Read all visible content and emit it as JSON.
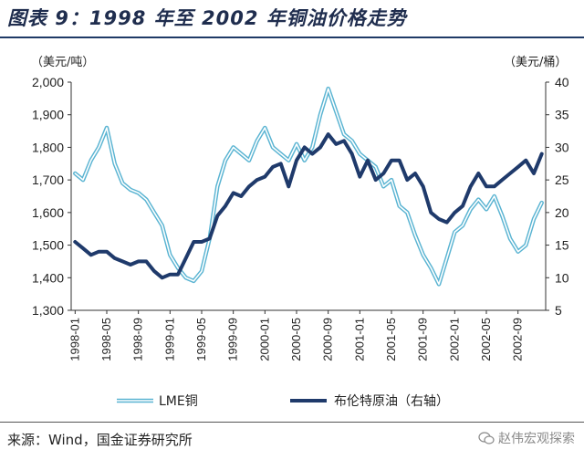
{
  "title": "图表 9：1998 年至 2002 年铜油价格走势",
  "source": "来源：Wind，国金证券研究所",
  "watermark": "赵伟宏观探索",
  "chart_data": {
    "type": "line",
    "title": "1998 年至 2002 年铜油价格走势",
    "y_left": {
      "unit_label": "（美元/吨）",
      "range": [
        1300,
        2000
      ],
      "ticks": [
        "1,300",
        "1,400",
        "1,500",
        "1,600",
        "1,700",
        "1,800",
        "1,900",
        "2,000"
      ]
    },
    "y_right": {
      "unit_label": "（美元/桶）",
      "range": [
        5,
        40
      ],
      "ticks": [
        "5",
        "10",
        "15",
        "20",
        "25",
        "30",
        "35",
        "40"
      ]
    },
    "x_ticks": [
      "1998-01",
      "1998-05",
      "1998-09",
      "1999-01",
      "1999-05",
      "1999-09",
      "2000-01",
      "2000-05",
      "2000-09",
      "2001-01",
      "2001-05",
      "2001-09",
      "2002-01",
      "2002-05",
      "2002-09"
    ],
    "x": [
      "1998-01",
      "1998-02",
      "1998-03",
      "1998-04",
      "1998-05",
      "1998-06",
      "1998-07",
      "1998-08",
      "1998-09",
      "1998-10",
      "1998-11",
      "1998-12",
      "1999-01",
      "1999-02",
      "1999-03",
      "1999-04",
      "1999-05",
      "1999-06",
      "1999-07",
      "1999-08",
      "1999-09",
      "1999-10",
      "1999-11",
      "1999-12",
      "2000-01",
      "2000-02",
      "2000-03",
      "2000-04",
      "2000-05",
      "2000-06",
      "2000-07",
      "2000-08",
      "2000-09",
      "2000-10",
      "2000-11",
      "2000-12",
      "2001-01",
      "2001-02",
      "2001-03",
      "2001-04",
      "2001-05",
      "2001-06",
      "2001-07",
      "2001-08",
      "2001-09",
      "2001-10",
      "2001-11",
      "2001-12",
      "2002-01",
      "2002-02",
      "2002-03",
      "2002-04",
      "2002-05",
      "2002-06",
      "2002-07",
      "2002-08",
      "2002-09",
      "2002-10",
      "2002-11",
      "2002-12"
    ],
    "grid": false,
    "legend_position": "bottom",
    "series": [
      {
        "name": "LME铜",
        "axis": "left",
        "color": "#5ab4d2",
        "style": "double",
        "values": [
          1720,
          1700,
          1760,
          1800,
          1860,
          1750,
          1690,
          1670,
          1660,
          1640,
          1600,
          1560,
          1470,
          1430,
          1400,
          1390,
          1420,
          1520,
          1680,
          1760,
          1800,
          1780,
          1760,
          1820,
          1860,
          1800,
          1780,
          1760,
          1810,
          1760,
          1800,
          1900,
          1980,
          1910,
          1840,
          1820,
          1780,
          1760,
          1740,
          1680,
          1700,
          1620,
          1600,
          1530,
          1470,
          1430,
          1380,
          1460,
          1540,
          1560,
          1610,
          1640,
          1610,
          1650,
          1590,
          1520,
          1480,
          1500,
          1580,
          1630
        ]
      },
      {
        "name": "布伦特原油（右轴）",
        "axis": "right",
        "color": "#1f3a6b",
        "style": "thick",
        "values": [
          15.5,
          14.5,
          13.5,
          14,
          14,
          13,
          12.5,
          12,
          12.5,
          12.5,
          11,
          10,
          10.5,
          10.5,
          13,
          15.5,
          15.5,
          16,
          19.5,
          21,
          23,
          22.5,
          24,
          25,
          25.5,
          27,
          27.5,
          24,
          28,
          30,
          29,
          30,
          32,
          30.5,
          31,
          29,
          25.5,
          28,
          25,
          26,
          28,
          28,
          25,
          26,
          24,
          20,
          19,
          18.5,
          20,
          21,
          24,
          26,
          24,
          24,
          25,
          26,
          27,
          28,
          26,
          29
        ]
      }
    ]
  }
}
